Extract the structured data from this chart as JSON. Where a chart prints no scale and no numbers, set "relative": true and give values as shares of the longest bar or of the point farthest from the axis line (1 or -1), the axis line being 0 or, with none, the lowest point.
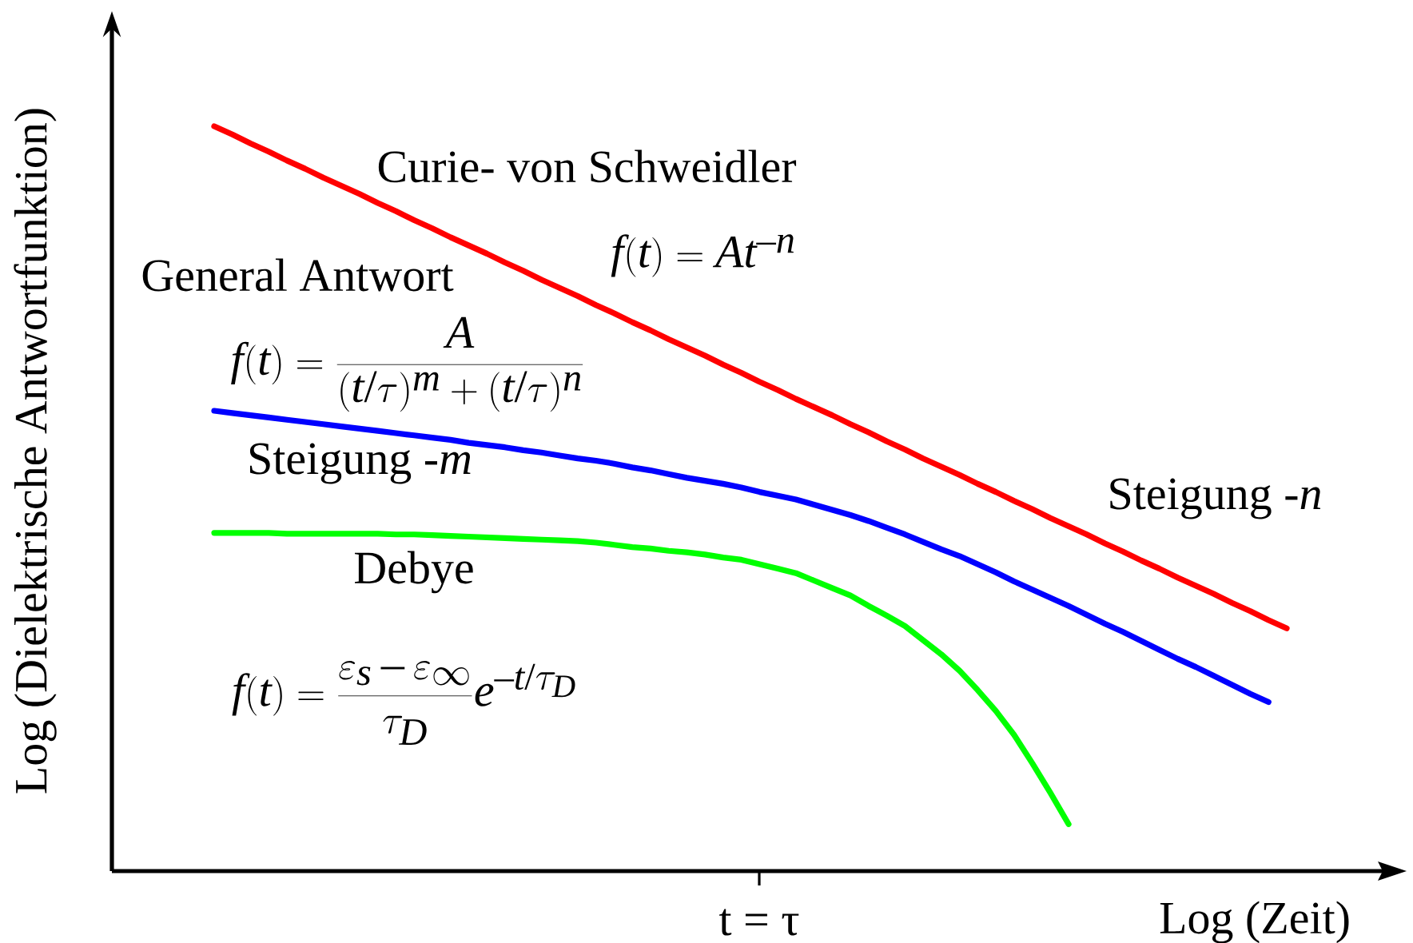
{
  "chart_data": {
    "type": "line",
    "relative": true,
    "xlabel": "Log (Zeit)",
    "ylabel": "Log (Dielektrische Antwortfunktion)",
    "categories": [
      null,
      null,
      null,
      null,
      null,
      null,
      null,
      null,
      null,
      null,
      null,
      null,
      null,
      null,
      null,
      null,
      null,
      null,
      null,
      null,
      null,
      null,
      null,
      null,
      null,
      null,
      null,
      null,
      null,
      null,
      null,
      null,
      null,
      null,
      null,
      null,
      null,
      null,
      null,
      null,
      null,
      null,
      null,
      null,
      null,
      null,
      null,
      null,
      null,
      null,
      null,
      null,
      null,
      null,
      null,
      null,
      null,
      null,
      null,
      null
    ],
    "series": [
      {
        "name": "Curie- von Schweidler",
        "color": "#ff0000",
        "values": [
          1,
          0.989,
          0.977,
          0.966,
          0.954,
          0.943,
          0.931,
          0.92,
          0.909,
          0.897,
          0.886,
          0.874,
          0.863,
          0.851,
          0.84,
          0.829,
          0.817,
          0.806,
          0.794,
          0.783,
          0.772,
          0.76,
          0.749,
          0.737,
          0.726,
          0.714,
          0.703,
          0.692,
          0.68,
          0.669,
          0.657,
          0.646,
          0.634,
          0.623,
          0.612,
          0.6,
          0.589,
          0.577,
          0.566,
          0.554,
          0.543,
          0.532,
          0.52,
          0.509,
          0.497,
          0.486,
          0.474,
          0.463,
          0.452,
          0.44,
          0.429,
          0.417,
          0.406,
          0.394,
          0.383,
          0.372,
          0.36,
          0.349,
          0.337,
          0.326
        ]
      },
      {
        "color": "#0000ff",
        "values": [
          0.618,
          0.615,
          0.612,
          0.609,
          0.606,
          0.603,
          0.6,
          0.597,
          0.594,
          0.591,
          0.588,
          0.585,
          0.582,
          0.579,
          0.575,
          0.572,
          0.569,
          0.565,
          0.562,
          0.558,
          0.554,
          0.551,
          0.547,
          0.542,
          0.538,
          0.533,
          0.528,
          0.524,
          0.52,
          0.515,
          0.509,
          0.504,
          0.499,
          0.492,
          0.485,
          0.478,
          0.47,
          0.461,
          0.452,
          0.442,
          0.432,
          0.423,
          0.412,
          0.401,
          0.389,
          0.378,
          0.367,
          0.356,
          0.344,
          0.332,
          0.321,
          0.309,
          0.297,
          0.285,
          0.274,
          0.262,
          0.25,
          0.238,
          0.227,
          null
        ]
      },
      {
        "name": "Debye",
        "color": "#00ff00",
        "values": [
          0.454,
          0.454,
          0.454,
          0.454,
          0.453,
          0.453,
          0.453,
          0.453,
          0.453,
          0.453,
          0.452,
          0.452,
          0.451,
          0.45,
          0.449,
          0.448,
          0.447,
          0.446,
          0.445,
          0.444,
          0.443,
          0.441,
          0.438,
          0.435,
          0.433,
          0.43,
          0.428,
          0.425,
          0.421,
          0.418,
          0.412,
          0.406,
          0.4,
          0.39,
          0.38,
          0.37,
          0.356,
          0.343,
          0.329,
          0.31,
          0.291,
          0.269,
          0.243,
          0.215,
          0.183,
          0.145,
          0.105,
          0.063,
          null,
          null,
          null,
          null,
          null,
          null,
          null,
          null,
          null,
          null,
          null,
          null
        ]
      }
    ],
    "annotations": [
      "f(t)=At^{-n}",
      "General Antwort",
      "f(t)=\\frac{A}{(t/\\tau)^{m}+(t/\\tau)^{n}}",
      "Steigung *-m*",
      "Steigung *-n*",
      "f(t)=\\frac{\\varepsilon_{s}-\\varepsilon_{\\infty}}{\\tau_{D}}e^{-t/\\tau_{D}}",
      "t = τ"
    ]
  }
}
